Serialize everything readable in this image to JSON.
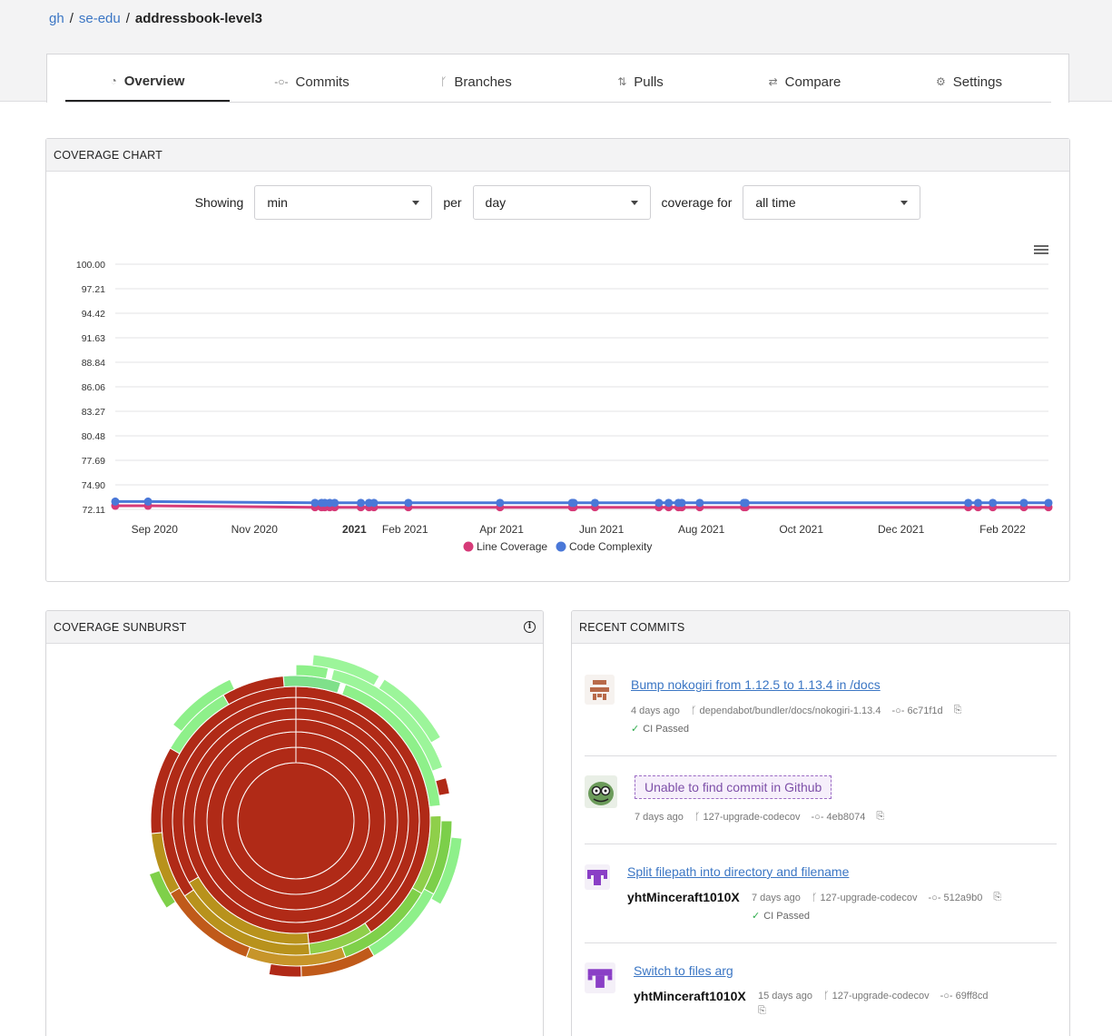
{
  "breadcrumb": {
    "owner_host": "gh",
    "org": "se-edu",
    "repo": "addressbook-level3",
    "sep": "/"
  },
  "tabs": [
    {
      "label": "Overview",
      "icon": "gauge-icon",
      "glyph": "◔"
    },
    {
      "label": "Commits",
      "icon": "commit-icon",
      "glyph": "-○-"
    },
    {
      "label": "Branches",
      "icon": "branch-icon",
      "glyph": "ᚴ"
    },
    {
      "label": "Pulls",
      "icon": "pull-request-icon",
      "glyph": "⇅"
    },
    {
      "label": "Compare",
      "icon": "compare-icon",
      "glyph": "⇄"
    },
    {
      "label": "Settings",
      "icon": "gear-icon",
      "glyph": "⚙"
    }
  ],
  "coverage_chart": {
    "heading": "COVERAGE CHART",
    "showing_label": "Showing",
    "showing_value": "min",
    "per_label": "per",
    "per_value": "day",
    "coverage_for_label": "coverage for",
    "coverage_for_value": "all time"
  },
  "chart_data": {
    "type": "line",
    "ylim": [
      72.11,
      100.0
    ],
    "yticks": [
      "100.00",
      "97.21",
      "94.42",
      "91.63",
      "88.84",
      "86.06",
      "83.27",
      "80.48",
      "77.69",
      "74.90",
      "72.11"
    ],
    "xlim": [
      "2020-08-08",
      "2022-03-01"
    ],
    "xticks": [
      {
        "label": "Sep 2020",
        "date": "2020-09-01",
        "bold": false
      },
      {
        "label": "Nov 2020",
        "date": "2020-11-01",
        "bold": false
      },
      {
        "label": "2021",
        "date": "2021-01-01",
        "bold": true
      },
      {
        "label": "Feb 2021",
        "date": "2021-02-01",
        "bold": false
      },
      {
        "label": "Apr 2021",
        "date": "2021-04-01",
        "bold": false
      },
      {
        "label": "Jun 2021",
        "date": "2021-06-01",
        "bold": false
      },
      {
        "label": "Aug 2021",
        "date": "2021-08-01",
        "bold": false
      },
      {
        "label": "Oct 2021",
        "date": "2021-10-01",
        "bold": false
      },
      {
        "label": "Dec 2021",
        "date": "2021-12-01",
        "bold": false
      },
      {
        "label": "Feb 2022",
        "date": "2022-02-01",
        "bold": false
      }
    ],
    "series": [
      {
        "name": "Line Coverage",
        "color": "#d63a78",
        "points": [
          [
            "2020-08-08",
            72.52
          ],
          [
            "2020-08-28",
            72.52
          ],
          [
            "2020-12-08",
            72.35
          ],
          [
            "2020-12-12",
            72.35
          ],
          [
            "2020-12-14",
            72.35
          ],
          [
            "2020-12-17",
            72.35
          ],
          [
            "2020-12-20",
            72.35
          ],
          [
            "2021-01-05",
            72.35
          ],
          [
            "2021-01-10",
            72.35
          ],
          [
            "2021-01-13",
            72.35
          ],
          [
            "2021-02-03",
            72.35
          ],
          [
            "2021-03-31",
            72.35
          ],
          [
            "2021-05-14",
            72.35
          ],
          [
            "2021-05-15",
            72.35
          ],
          [
            "2021-05-28",
            72.35
          ],
          [
            "2021-07-06",
            72.35
          ],
          [
            "2021-07-12",
            72.35
          ],
          [
            "2021-07-18",
            72.35
          ],
          [
            "2021-07-20",
            72.35
          ],
          [
            "2021-07-31",
            72.35
          ],
          [
            "2021-08-27",
            72.35
          ],
          [
            "2021-08-28",
            72.35
          ],
          [
            "2022-01-11",
            72.35
          ],
          [
            "2022-01-17",
            72.35
          ],
          [
            "2022-01-26",
            72.35
          ],
          [
            "2022-02-14",
            72.35
          ],
          [
            "2022-03-01",
            72.35
          ]
        ]
      },
      {
        "name": "Code Complexity",
        "color": "#4a78d8",
        "points": [
          [
            "2020-08-08",
            73.0
          ],
          [
            "2020-08-28",
            73.0
          ],
          [
            "2020-12-08",
            72.85
          ],
          [
            "2020-12-12",
            72.85
          ],
          [
            "2020-12-14",
            72.85
          ],
          [
            "2020-12-17",
            72.85
          ],
          [
            "2020-12-20",
            72.85
          ],
          [
            "2021-01-05",
            72.85
          ],
          [
            "2021-01-10",
            72.85
          ],
          [
            "2021-01-13",
            72.85
          ],
          [
            "2021-02-03",
            72.85
          ],
          [
            "2021-03-31",
            72.85
          ],
          [
            "2021-05-14",
            72.85
          ],
          [
            "2021-05-15",
            72.85
          ],
          [
            "2021-05-28",
            72.85
          ],
          [
            "2021-07-06",
            72.85
          ],
          [
            "2021-07-12",
            72.85
          ],
          [
            "2021-07-18",
            72.85
          ],
          [
            "2021-07-20",
            72.85
          ],
          [
            "2021-07-31",
            72.85
          ],
          [
            "2021-08-27",
            72.85
          ],
          [
            "2021-08-28",
            72.85
          ],
          [
            "2022-01-11",
            72.85
          ],
          [
            "2022-01-17",
            72.85
          ],
          [
            "2022-01-26",
            72.85
          ],
          [
            "2022-02-14",
            72.85
          ],
          [
            "2022-03-01",
            72.85
          ]
        ]
      }
    ],
    "legend": [
      "Line Coverage",
      "Code Complexity"
    ],
    "legend_position": "bottom-center",
    "grid": true
  },
  "sunburst": {
    "heading": "COVERAGE SUNBURST",
    "info_icon": "info-icon"
  },
  "recent_commits": {
    "heading": "RECENT COMMITS",
    "items": [
      {
        "title": "Bump nokogiri from 1.12.5 to 1.13.4 in /docs",
        "author": "",
        "age": "4 days ago",
        "branch": "dependabot/bundler/docs/nokogiri-1.13.4",
        "sha": "6c71f1d",
        "ci": "CI Passed",
        "avatar": "dependabot-avatar"
      },
      {
        "title": "Unable to find commit in Github",
        "author": "",
        "age": "7 days ago",
        "branch": "127-upgrade-codecov",
        "sha": "4eb8074",
        "ci": "",
        "avatar": "codecov-avatar"
      },
      {
        "title": "Split filepath into directory and filename",
        "author": "yhtMinceraft1010X",
        "age": "7 days ago",
        "branch": "127-upgrade-codecov",
        "sha": "512a9b0",
        "ci": "CI Passed",
        "avatar": "user-avatar"
      },
      {
        "title": "Switch to files arg",
        "author": "yhtMinceraft1010X",
        "age": "15 days ago",
        "branch": "127-upgrade-codecov",
        "sha": "69ff8cd",
        "ci": "",
        "avatar": "user-avatar"
      }
    ]
  }
}
